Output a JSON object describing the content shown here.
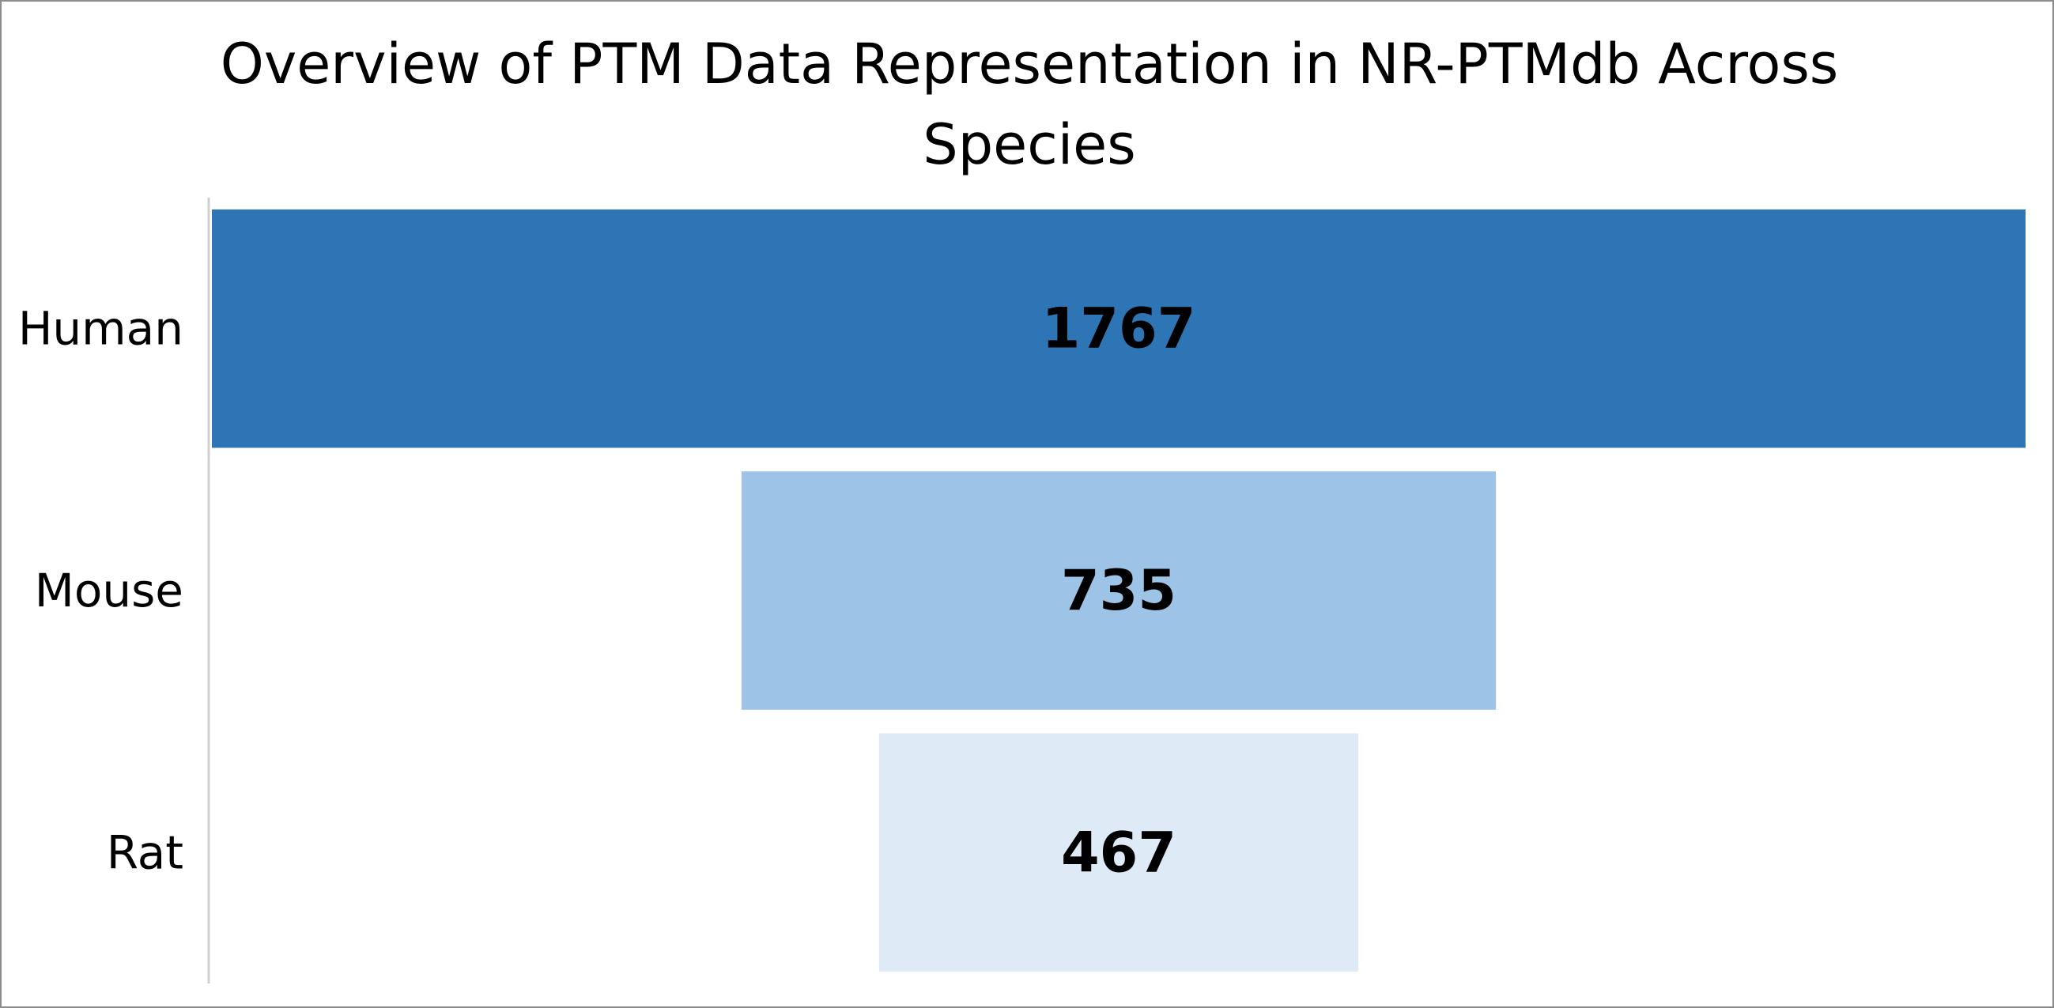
{
  "chart_data": {
    "type": "funnel",
    "title": "Overview of PTM Data Representation in NR-PTMdb Across Species",
    "categories": [
      "Human",
      "Mouse",
      "Rat"
    ],
    "values": [
      1767,
      735,
      467
    ],
    "colors": [
      "#2e75b6",
      "#9dc3e6",
      "#deebf7"
    ],
    "data_labels": [
      "1767",
      "735",
      "467"
    ],
    "legend": "none",
    "grid": false
  }
}
